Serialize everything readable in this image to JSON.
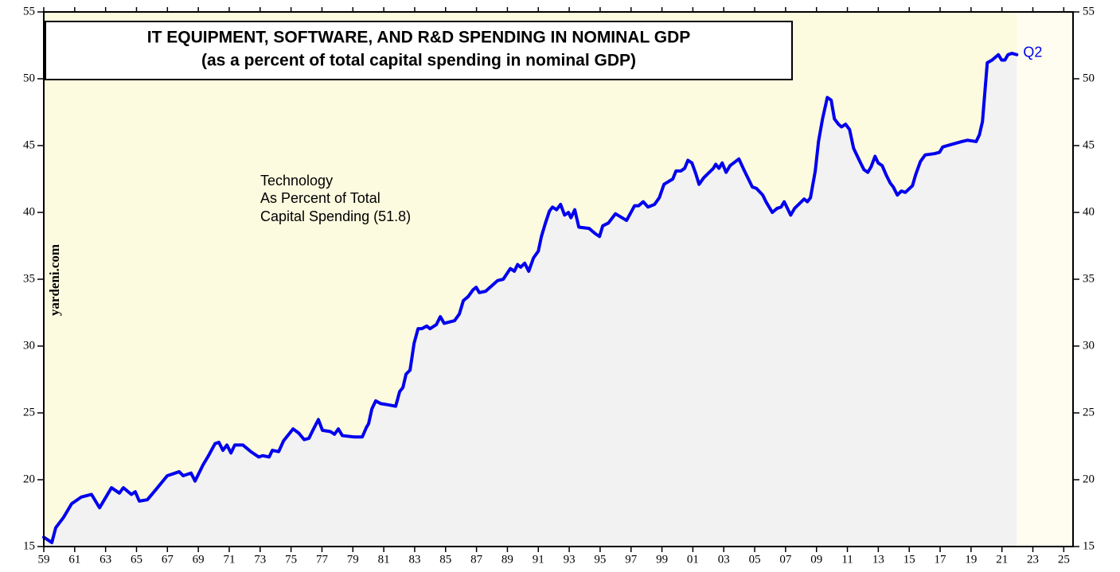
{
  "chart_data": {
    "type": "line",
    "title": "IT EQUIPMENT, SOFTWARE, AND R&D SPENDING IN NOMINAL GDP",
    "subtitle": "(as a percent of total capital spending in nominal GDP)",
    "annotation": [
      "Technology",
      "As Percent of Total",
      "Capital Spending (51.8)"
    ],
    "end_label": "Q2",
    "source": "yardeni.com",
    "color": "#0000ee",
    "area_color": "#f2f2f2",
    "background_color": "#fdfbdf",
    "x": [
      1959.0,
      1959.52,
      1959.77,
      1960.29,
      1960.8,
      1961.42,
      1962.09,
      1962.61,
      1963.38,
      1963.89,
      1964.15,
      1964.67,
      1964.92,
      1965.18,
      1965.7,
      1966.21,
      1966.99,
      1967.76,
      1968.02,
      1968.53,
      1968.79,
      1969.3,
      1969.66,
      1970.08,
      1970.33,
      1970.59,
      1970.85,
      1971.11,
      1971.36,
      1971.88,
      1972.4,
      1972.91,
      1973.17,
      1973.58,
      1973.79,
      1974.2,
      1974.51,
      1975.13,
      1975.49,
      1975.85,
      1976.16,
      1976.41,
      1976.77,
      1977.03,
      1977.55,
      1977.81,
      1978.06,
      1978.32,
      1979.09,
      1979.61,
      1979.87,
      1980.02,
      1980.23,
      1980.48,
      1980.79,
      1981.31,
      1981.77,
      1982.03,
      1982.24,
      1982.44,
      1982.7,
      1982.96,
      1983.22,
      1983.47,
      1983.78,
      1983.99,
      1984.4,
      1984.66,
      1984.91,
      1985.58,
      1985.89,
      1986.15,
      1986.46,
      1986.77,
      1986.98,
      1987.18,
      1987.59,
      1988.37,
      1988.73,
      1989.19,
      1989.45,
      1989.66,
      1989.86,
      1990.12,
      1990.38,
      1990.69,
      1991.0,
      1991.2,
      1991.46,
      1991.72,
      1991.92,
      1992.18,
      1992.44,
      1992.7,
      1992.95,
      1993.11,
      1993.36,
      1993.62,
      1994.29,
      1994.7,
      1994.96,
      1995.17,
      1995.53,
      1995.99,
      1996.71,
      1997.23,
      1997.49,
      1997.79,
      1998.1,
      1998.52,
      1998.83,
      1999.13,
      1999.7,
      1999.91,
      2000.22,
      2000.47,
      2000.68,
      2000.94,
      2001.19,
      2001.4,
      2001.71,
      2002.33,
      2002.48,
      2002.69,
      2002.9,
      2003.15,
      2003.41,
      2003.98,
      2004.34,
      2004.85,
      2005.11,
      2005.52,
      2005.73,
      2006.14,
      2006.45,
      2006.71,
      2006.91,
      2007.33,
      2007.58,
      2008.2,
      2008.41,
      2008.61,
      2008.92,
      2009.13,
      2009.39,
      2009.7,
      2009.95,
      2010.16,
      2010.42,
      2010.62,
      2010.88,
      2011.14,
      2011.4,
      2011.81,
      2012.07,
      2012.32,
      2012.53,
      2012.79,
      2012.99,
      2013.25,
      2013.51,
      2013.77,
      2013.97,
      2014.23,
      2014.49,
      2014.75,
      2015.21,
      2015.41,
      2015.72,
      2016.03,
      2016.65,
      2016.96,
      2017.17,
      2017.78,
      2018.4,
      2018.76,
      2019.33,
      2019.54,
      2019.74,
      2020.05,
      2020.36,
      2020.77,
      2020.98,
      2021.19,
      2021.39,
      2021.65,
      2021.96
    ],
    "values": [
      15.7,
      15.3,
      16.4,
      17.2,
      18.2,
      18.7,
      18.9,
      17.9,
      19.4,
      19.0,
      19.4,
      18.9,
      19.1,
      18.4,
      18.5,
      19.2,
      20.3,
      20.6,
      20.3,
      20.5,
      19.9,
      21.1,
      21.8,
      22.7,
      22.8,
      22.2,
      22.6,
      22.0,
      22.6,
      22.6,
      22.1,
      21.7,
      21.8,
      21.7,
      22.2,
      22.1,
      22.9,
      23.8,
      23.5,
      23.0,
      23.1,
      23.7,
      24.5,
      23.7,
      23.6,
      23.4,
      23.8,
      23.3,
      23.2,
      23.2,
      23.9,
      24.2,
      25.3,
      25.9,
      25.7,
      25.6,
      25.5,
      26.6,
      26.9,
      27.9,
      28.2,
      30.2,
      31.3,
      31.3,
      31.5,
      31.3,
      31.6,
      32.2,
      31.7,
      31.9,
      32.4,
      33.4,
      33.7,
      34.2,
      34.4,
      34.0,
      34.1,
      34.9,
      35.0,
      35.8,
      35.6,
      36.1,
      35.9,
      36.2,
      35.6,
      36.6,
      37.1,
      38.2,
      39.2,
      40.1,
      40.4,
      40.2,
      40.6,
      39.8,
      40.0,
      39.6,
      40.2,
      38.9,
      38.8,
      38.4,
      38.2,
      39.0,
      39.2,
      39.9,
      39.4,
      40.5,
      40.5,
      40.8,
      40.4,
      40.6,
      41.1,
      42.1,
      42.5,
      43.1,
      43.1,
      43.3,
      43.9,
      43.7,
      42.9,
      42.1,
      42.6,
      43.3,
      43.6,
      43.3,
      43.7,
      43.0,
      43.5,
      44.0,
      43.1,
      41.9,
      41.8,
      41.3,
      40.8,
      40.0,
      40.3,
      40.4,
      40.8,
      39.8,
      40.3,
      41.0,
      40.8,
      41.1,
      43.1,
      45.3,
      47.0,
      48.6,
      48.4,
      47.0,
      46.6,
      46.4,
      46.6,
      46.2,
      44.8,
      43.8,
      43.2,
      43.0,
      43.4,
      44.2,
      43.7,
      43.5,
      42.8,
      42.2,
      41.9,
      41.3,
      41.6,
      41.5,
      42.0,
      42.8,
      43.8,
      44.3,
      44.4,
      44.5,
      44.9,
      45.1,
      45.3,
      45.4,
      45.3,
      45.8,
      46.8,
      51.2,
      51.4,
      51.8,
      51.4,
      51.4,
      51.8,
      51.9,
      51.8
    ],
    "xlim": [
      1959,
      2025.6
    ],
    "xticks": [
      {
        "value": 1959,
        "label": "59"
      },
      {
        "value": 1961,
        "label": "61"
      },
      {
        "value": 1963,
        "label": "63"
      },
      {
        "value": 1965,
        "label": "65"
      },
      {
        "value": 1967,
        "label": "67"
      },
      {
        "value": 1969,
        "label": "69"
      },
      {
        "value": 1971,
        "label": "71"
      },
      {
        "value": 1973,
        "label": "73"
      },
      {
        "value": 1975,
        "label": "75"
      },
      {
        "value": 1977,
        "label": "77"
      },
      {
        "value": 1979,
        "label": "79"
      },
      {
        "value": 1981,
        "label": "81"
      },
      {
        "value": 1983,
        "label": "83"
      },
      {
        "value": 1985,
        "label": "85"
      },
      {
        "value": 1987,
        "label": "87"
      },
      {
        "value": 1989,
        "label": "89"
      },
      {
        "value": 1991,
        "label": "91"
      },
      {
        "value": 1993,
        "label": "93"
      },
      {
        "value": 1995,
        "label": "95"
      },
      {
        "value": 1997,
        "label": "97"
      },
      {
        "value": 1999,
        "label": "99"
      },
      {
        "value": 2001,
        "label": "01"
      },
      {
        "value": 2003,
        "label": "03"
      },
      {
        "value": 2005,
        "label": "05"
      },
      {
        "value": 2007,
        "label": "07"
      },
      {
        "value": 2009,
        "label": "09"
      },
      {
        "value": 2011,
        "label": "11"
      },
      {
        "value": 2013,
        "label": "13"
      },
      {
        "value": 2015,
        "label": "15"
      },
      {
        "value": 2017,
        "label": "17"
      },
      {
        "value": 2019,
        "label": "19"
      },
      {
        "value": 2021,
        "label": "21"
      },
      {
        "value": 2023,
        "label": "23"
      },
      {
        "value": 2025,
        "label": "25"
      }
    ],
    "ylim": [
      15,
      55
    ],
    "yticks": [
      15,
      20,
      25,
      30,
      35,
      40,
      45,
      50,
      55
    ],
    "y2lim": [
      15,
      55
    ],
    "y2ticks": [
      15,
      20,
      25,
      30,
      35,
      40,
      45,
      50,
      55
    ]
  }
}
